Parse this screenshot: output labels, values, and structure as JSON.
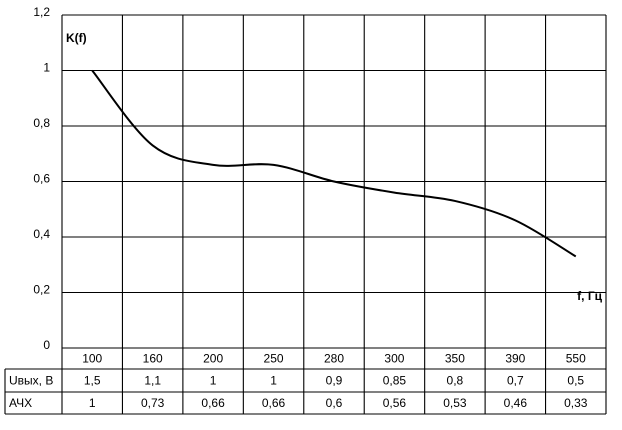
{
  "chart_data": {
    "type": "line",
    "smooth": true,
    "grid": true,
    "y_label": "K(f)",
    "x_label": "f, Гц",
    "categories": [
      "100",
      "160",
      "200",
      "250",
      "280",
      "300",
      "350",
      "390",
      "550"
    ],
    "series": [
      {
        "name": "АЧХ",
        "color": "#000000",
        "values": [
          1,
          0.73,
          0.66,
          0.66,
          0.6,
          0.56,
          0.53,
          0.46,
          0.33
        ],
        "value_labels": [
          "1",
          "0,73",
          "0,66",
          "0,66",
          "0,6",
          "0,56",
          "0,53",
          "0,46",
          "0,33"
        ]
      }
    ],
    "ylim": [
      0,
      1.2
    ],
    "yticks": [
      0,
      {
        "value": 0.2,
        "label": "0,2"
      },
      {
        "value": 0.4,
        "label": "0,4"
      },
      {
        "value": 0.6,
        "label": "0,6"
      },
      {
        "value": 0.8,
        "label": "0,8"
      },
      1,
      {
        "value": 1.2,
        "label": "1,2"
      }
    ],
    "table": {
      "rows": [
        {
          "name": "Uвых, В",
          "values": [
            1.5,
            1.1,
            1,
            1,
            0.9,
            0.85,
            0.8,
            0.7,
            0.5
          ],
          "value_labels": [
            "1,5",
            "1,1",
            "1",
            "1",
            "0,9",
            "0,85",
            "0,8",
            "0,7",
            "0,5"
          ]
        }
      ]
    }
  }
}
